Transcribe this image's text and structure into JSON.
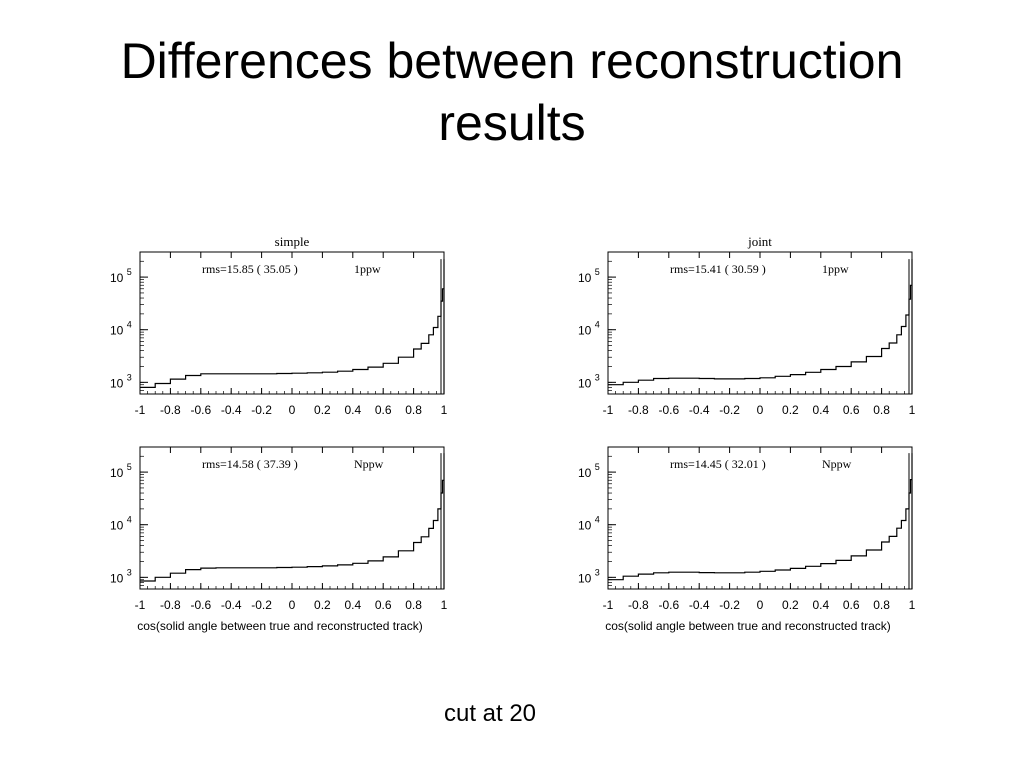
{
  "slide": {
    "title_lines": [
      "Differences between reconstruction",
      "results"
    ],
    "footnote": "cut at 20"
  },
  "chart_data": [
    {
      "type": "line",
      "title": "simple",
      "annotation": "rms=15.85 ( 35.05 )",
      "label": "1ppw",
      "xlabel": "",
      "xlim": [
        -1,
        1
      ],
      "x_ticks": [
        "-1",
        "-0.8",
        "-0.6",
        "-0.4",
        "-0.2",
        "0",
        "0.2",
        "0.4",
        "0.6",
        "0.8",
        "1"
      ],
      "y_scale": "log",
      "y_ticks": [
        {
          "base": "10",
          "exp": "3"
        },
        {
          "base": "10",
          "exp": "4"
        },
        {
          "base": "10",
          "exp": "5"
        }
      ],
      "ylim": [
        600,
        300000
      ],
      "x": [
        -1.0,
        -0.9,
        -0.8,
        -0.7,
        -0.6,
        -0.5,
        -0.4,
        -0.3,
        -0.2,
        -0.1,
        0.0,
        0.1,
        0.2,
        0.3,
        0.4,
        0.5,
        0.6,
        0.7,
        0.8,
        0.85,
        0.9,
        0.93,
        0.96,
        0.98,
        0.99,
        1.0
      ],
      "y": [
        800,
        950,
        1150,
        1350,
        1450,
        1450,
        1450,
        1450,
        1450,
        1470,
        1490,
        1520,
        1560,
        1630,
        1750,
        1950,
        2300,
        3000,
        4300,
        5500,
        8000,
        11000,
        18000,
        35000,
        60000,
        220000
      ]
    },
    {
      "type": "line",
      "title": "joint",
      "annotation": "rms=15.41 ( 30.59 )",
      "label": "1ppw",
      "xlabel": "",
      "xlim": [
        -1,
        1
      ],
      "x_ticks": [
        "-1",
        "-0.8",
        "-0.6",
        "-0.4",
        "-0.2",
        "0",
        "0.2",
        "0.4",
        "0.6",
        "0.8",
        "1"
      ],
      "y_scale": "log",
      "y_ticks": [
        {
          "base": "10",
          "exp": "3"
        },
        {
          "base": "10",
          "exp": "4"
        },
        {
          "base": "10",
          "exp": "5"
        }
      ],
      "ylim": [
        600,
        300000
      ],
      "x": [
        -1.0,
        -0.9,
        -0.8,
        -0.7,
        -0.6,
        -0.5,
        -0.4,
        -0.3,
        -0.2,
        -0.1,
        0.0,
        0.1,
        0.2,
        0.3,
        0.4,
        0.5,
        0.6,
        0.7,
        0.8,
        0.85,
        0.9,
        0.93,
        0.96,
        0.98,
        0.99,
        1.0
      ],
      "y": [
        900,
        1000,
        1100,
        1180,
        1200,
        1200,
        1180,
        1160,
        1160,
        1180,
        1220,
        1300,
        1400,
        1550,
        1750,
        2000,
        2450,
        3100,
        4400,
        5600,
        8000,
        11500,
        19000,
        38000,
        70000,
        220000
      ]
    },
    {
      "type": "line",
      "title": "",
      "annotation": "rms=14.58 ( 37.39 )",
      "label": "Nppw",
      "xlabel": "cos(solid angle between true and reconstructed track)",
      "xlim": [
        -1,
        1
      ],
      "x_ticks": [
        "-1",
        "-0.8",
        "-0.6",
        "-0.4",
        "-0.2",
        "0",
        "0.2",
        "0.4",
        "0.6",
        "0.8",
        "1"
      ],
      "y_scale": "log",
      "y_ticks": [
        {
          "base": "10",
          "exp": "3"
        },
        {
          "base": "10",
          "exp": "4"
        },
        {
          "base": "10",
          "exp": "5"
        }
      ],
      "ylim": [
        600,
        300000
      ],
      "x": [
        -1.0,
        -0.9,
        -0.8,
        -0.7,
        -0.6,
        -0.5,
        -0.4,
        -0.3,
        -0.2,
        -0.1,
        0.0,
        0.1,
        0.2,
        0.3,
        0.4,
        0.5,
        0.6,
        0.7,
        0.8,
        0.85,
        0.9,
        0.93,
        0.96,
        0.98,
        0.99,
        1.0
      ],
      "y": [
        850,
        1000,
        1200,
        1400,
        1500,
        1520,
        1520,
        1520,
        1520,
        1540,
        1560,
        1600,
        1650,
        1720,
        1850,
        2050,
        2450,
        3200,
        4600,
        5900,
        8500,
        12000,
        20000,
        40000,
        70000,
        230000
      ]
    },
    {
      "type": "line",
      "title": "",
      "annotation": "rms=14.45 ( 32.01 )",
      "label": "Nppw",
      "xlabel": "cos(solid angle between true and reconstructed track)",
      "xlim": [
        -1,
        1
      ],
      "x_ticks": [
        "-1",
        "-0.8",
        "-0.6",
        "-0.4",
        "-0.2",
        "0",
        "0.2",
        "0.4",
        "0.6",
        "0.8",
        "1"
      ],
      "y_scale": "log",
      "y_ticks": [
        {
          "base": "10",
          "exp": "3"
        },
        {
          "base": "10",
          "exp": "4"
        },
        {
          "base": "10",
          "exp": "5"
        }
      ],
      "ylim": [
        600,
        300000
      ],
      "x": [
        -1.0,
        -0.9,
        -0.8,
        -0.7,
        -0.6,
        -0.5,
        -0.4,
        -0.3,
        -0.2,
        -0.1,
        0.0,
        0.1,
        0.2,
        0.3,
        0.4,
        0.5,
        0.6,
        0.7,
        0.8,
        0.85,
        0.9,
        0.93,
        0.96,
        0.98,
        0.99,
        1.0
      ],
      "y": [
        900,
        1050,
        1150,
        1220,
        1250,
        1250,
        1230,
        1220,
        1220,
        1250,
        1300,
        1380,
        1480,
        1620,
        1820,
        2100,
        2550,
        3300,
        4700,
        6000,
        8600,
        12000,
        20000,
        40000,
        72000,
        230000
      ]
    }
  ]
}
